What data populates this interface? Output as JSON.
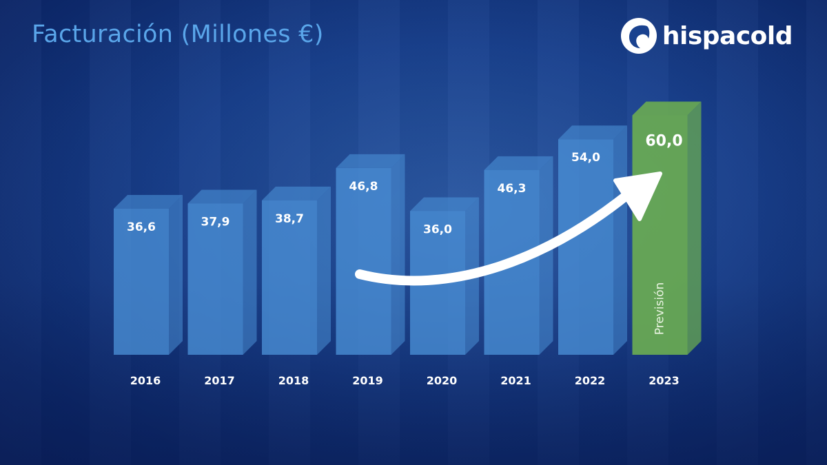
{
  "title": "Facturación (Millones €)",
  "logo": {
    "text": "hispacold"
  },
  "chart_data": {
    "type": "bar",
    "title": "Facturación (Millones €)",
    "categories": [
      "2016",
      "2017",
      "2018",
      "2019",
      "2020",
      "2021",
      "2022",
      "2023"
    ],
    "values": [
      36.6,
      37.9,
      38.7,
      46.8,
      36.0,
      46.3,
      54.0,
      60.0
    ],
    "value_labels": [
      "36,6",
      "37,9",
      "38,7",
      "46,8",
      "36,0",
      "46,3",
      "54,0",
      "60,0"
    ],
    "forecast_label": "Previsión",
    "forecast_category": "2023",
    "xlabel": "",
    "ylabel": "",
    "ylim": [
      0,
      64
    ],
    "grid": false,
    "legend": "none",
    "colors": {
      "bar": "#4a8fd6",
      "forecast_bar": "#6aab52",
      "arrow": "#ffffff",
      "title": "#5aa6ea"
    }
  }
}
